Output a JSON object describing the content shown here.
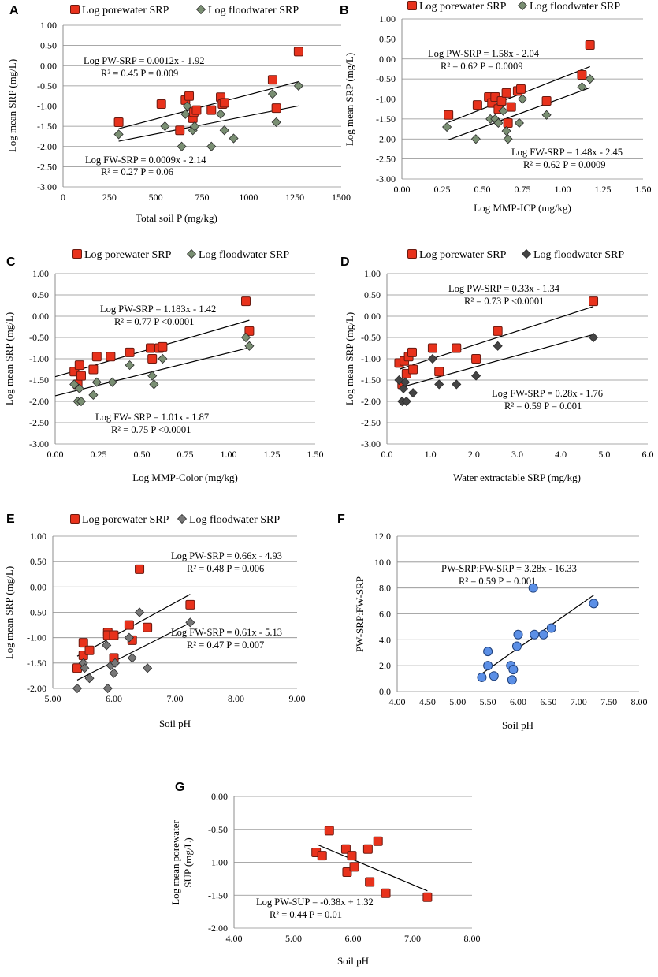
{
  "figure": {
    "panels": [
      {
        "letter": "A",
        "legend": [
          "Log porewater SRP",
          "Log floodwater SRP"
        ]
      },
      {
        "letter": "B",
        "legend": [
          "Log porewater SRP",
          "Log floodwater SRP"
        ]
      },
      {
        "letter": "C",
        "legend": [
          "Log porewater SRP",
          "Log floodwater SRP"
        ]
      },
      {
        "letter": "D",
        "legend": [
          "Log porewater SRP",
          "Log floodwater SRP"
        ]
      },
      {
        "letter": "E",
        "legend": [
          "Log porewater SRP",
          "Log floodwater SRP"
        ]
      },
      {
        "letter": "F",
        "legend": []
      },
      {
        "letter": "G",
        "legend": []
      }
    ]
  },
  "chart_data": [
    {
      "panel": "A",
      "type": "scatter",
      "xlabel": "Total soil P (mg/kg)",
      "ylabel": "Log mean SRP (mg/L)",
      "xlim": [
        0,
        1500
      ],
      "ylim": [
        -3.0,
        1.0
      ],
      "xticks": [
        0,
        250,
        500,
        750,
        1000,
        1250,
        1500
      ],
      "xtick_labels": [
        "0",
        "250",
        "500",
        "750",
        "1000",
        "1250",
        "1500"
      ],
      "yticks": [
        1.0,
        0.5,
        0.0,
        -0.5,
        -1.0,
        -1.5,
        -2.0,
        -2.5,
        -3.0
      ],
      "ytick_labels": [
        "1.00",
        "0.50",
        "0.00",
        "-0.50",
        "-1.00",
        "-1.50",
        "-2.00",
        "-2.50",
        "-3.00"
      ],
      "series": [
        {
          "name": "Log porewater SRP",
          "marker": "square",
          "color": "#e8321c",
          "x": [
            300,
            530,
            630,
            660,
            680,
            700,
            705,
            720,
            800,
            850,
            860,
            870,
            1130,
            1150,
            1270
          ],
          "y": [
            -1.4,
            -0.95,
            -1.6,
            -0.85,
            -0.75,
            -1.3,
            -1.15,
            -1.1,
            -1.1,
            -0.78,
            -0.95,
            -0.92,
            -0.35,
            -1.05,
            0.35
          ],
          "fit": {
            "slope": 0.0012,
            "intercept": -1.92,
            "x_range": [
              300,
              1270
            ]
          }
        },
        {
          "name": "Log floodwater SRP",
          "marker": "diamond",
          "color": "#7a8f73",
          "x": [
            300,
            550,
            640,
            660,
            670,
            700,
            710,
            800,
            850,
            870,
            920,
            1130,
            1150,
            1270
          ],
          "y": [
            -1.7,
            -1.5,
            -2.0,
            -1.2,
            -1.0,
            -1.6,
            -1.5,
            -2.0,
            -1.2,
            -1.6,
            -1.8,
            -0.7,
            -1.4,
            -0.5
          ],
          "fit": {
            "slope": 0.0009,
            "intercept": -2.14,
            "x_range": [
              300,
              1270
            ]
          }
        }
      ],
      "annotations": [
        "Log PW-SRP = 0.0012x - 1.92",
        "R² = 0.45 P = 0.009",
        "Log FW-SRP = 0.0009x - 2.14",
        "R² = 0.27 P = 0.06"
      ]
    },
    {
      "panel": "B",
      "type": "scatter",
      "xlabel": "Log MMP-ICP (mg/kg)",
      "ylabel": "Log mean SRP (mg/L)",
      "xlim": [
        0.0,
        1.5
      ],
      "ylim": [
        -3.0,
        1.0
      ],
      "xticks": [
        0.0,
        0.25,
        0.5,
        0.75,
        1.0,
        1.25,
        1.5
      ],
      "xtick_labels": [
        "0.00",
        "0.25",
        "0.50",
        "0.75",
        "1.00",
        "1.25",
        "1.50"
      ],
      "yticks": [
        1.0,
        0.5,
        0.0,
        -0.5,
        -1.0,
        -1.5,
        -2.0,
        -2.5,
        -3.0
      ],
      "ytick_labels": [
        "1.00",
        "0.50",
        "0.00",
        "-0.50",
        "-1.00",
        "-1.50",
        "-2.00",
        "-2.50",
        "-3.00"
      ],
      "series": [
        {
          "name": "Log porewater SRP",
          "marker": "square",
          "color": "#e8321c",
          "x": [
            0.29,
            0.47,
            0.54,
            0.56,
            0.58,
            0.6,
            0.62,
            0.65,
            0.66,
            0.68,
            0.72,
            0.74,
            0.9,
            1.12,
            1.17
          ],
          "y": [
            -1.4,
            -1.15,
            -0.95,
            -1.1,
            -0.95,
            -1.25,
            -1.05,
            -0.85,
            -1.6,
            -1.2,
            -0.8,
            -0.75,
            -1.05,
            -0.4,
            0.35
          ],
          "fit": {
            "slope": 1.58,
            "intercept": -2.04,
            "x_range": [
              0.29,
              1.17
            ]
          }
        },
        {
          "name": "Log floodwater SRP",
          "marker": "diamond",
          "color": "#7a8f73",
          "x": [
            0.28,
            0.46,
            0.55,
            0.58,
            0.6,
            0.63,
            0.65,
            0.66,
            0.73,
            0.75,
            0.9,
            1.12,
            1.17
          ],
          "y": [
            -1.7,
            -2.0,
            -1.5,
            -1.5,
            -1.6,
            -1.3,
            -1.8,
            -2.0,
            -1.6,
            -1.0,
            -1.4,
            -0.7,
            -0.5
          ],
          "fit": {
            "slope": 1.48,
            "intercept": -2.45,
            "x_range": [
              0.29,
              1.17
            ]
          }
        }
      ],
      "annotations": [
        "Log PW-SRP = 1.58x - 2.04",
        "R² = 0.62 P = 0.0009",
        "Log FW-SRP = 1.48x - 2.45",
        "R² = 0.62 P = 0.0009"
      ]
    },
    {
      "panel": "C",
      "type": "scatter",
      "xlabel": "Log MMP-Color (mg/kg)",
      "ylabel": "Log mean SRP (mg/L)",
      "xlim": [
        0.0,
        1.5
      ],
      "ylim": [
        -3.0,
        1.0
      ],
      "xticks": [
        0.0,
        0.25,
        0.5,
        0.75,
        1.0,
        1.25,
        1.5
      ],
      "xtick_labels": [
        "0.00",
        "0.25",
        "0.50",
        "0.75",
        "1.00",
        "1.25",
        "1.50"
      ],
      "yticks": [
        1.0,
        0.5,
        0.0,
        -0.5,
        -1.0,
        -1.5,
        -2.0,
        -2.5,
        -3.0
      ],
      "ytick_labels": [
        "1.00",
        "0.50",
        "0.00",
        "-0.50",
        "-1.00",
        "-1.50",
        "-2.00",
        "-2.50",
        "-3.00"
      ],
      "series": [
        {
          "name": "Log porewater SRP",
          "marker": "square",
          "color": "#e8321c",
          "x": [
            0.11,
            0.13,
            0.14,
            0.15,
            0.22,
            0.24,
            0.32,
            0.43,
            0.55,
            0.56,
            0.6,
            0.62,
            1.1,
            1.12
          ],
          "y": [
            -1.3,
            -1.6,
            -1.15,
            -1.4,
            -1.25,
            -0.95,
            -0.95,
            -0.85,
            -0.75,
            -1.0,
            -0.75,
            -0.72,
            0.35,
            -0.35
          ],
          "fit": {
            "slope": 1.183,
            "intercept": -1.42,
            "x_range": [
              0.0,
              1.12
            ]
          }
        },
        {
          "name": "Log floodwater SRP",
          "marker": "diamond",
          "color": "#7a8f73",
          "x": [
            0.11,
            0.13,
            0.14,
            0.15,
            0.22,
            0.24,
            0.33,
            0.43,
            0.56,
            0.57,
            0.62,
            1.1,
            1.12
          ],
          "y": [
            -1.6,
            -2.0,
            -1.7,
            -2.0,
            -1.85,
            -1.55,
            -1.55,
            -1.15,
            -1.4,
            -1.6,
            -1.0,
            -0.5,
            -0.7
          ],
          "fit": {
            "slope": 1.01,
            "intercept": -1.87,
            "x_range": [
              0.0,
              1.12
            ]
          }
        }
      ],
      "annotations": [
        "Log PW-SRP = 1.183x - 1.42",
        "R² = 0.77 P <0.0001",
        "Log FW- SRP = 1.01x - 1.87",
        "R² = 0.75 P <0.0001"
      ]
    },
    {
      "panel": "D",
      "type": "scatter",
      "xlabel": "Water extractable SRP (mg/kg)",
      "ylabel": "Log mean SRP (mg/L)",
      "xlim": [
        0.0,
        6.0
      ],
      "ylim": [
        -3.0,
        1.0
      ],
      "xticks": [
        0.0,
        1.0,
        2.0,
        3.0,
        4.0,
        5.0,
        6.0
      ],
      "xtick_labels": [
        "0.0",
        "1.0",
        "2.0",
        "3.0",
        "4.0",
        "5.0",
        "6.0"
      ],
      "yticks": [
        1.0,
        0.5,
        0.0,
        -0.5,
        -1.0,
        -1.5,
        -2.0,
        -2.5,
        -3.0
      ],
      "ytick_labels": [
        "1.00",
        "0.50",
        "0.00",
        "-0.50",
        "-1.00",
        "-1.50",
        "-2.00",
        "-2.50",
        "-3.00"
      ],
      "series": [
        {
          "name": "Log porewater SRP",
          "marker": "square",
          "color": "#e8321c",
          "x": [
            0.28,
            0.35,
            0.4,
            0.45,
            0.5,
            0.58,
            0.6,
            1.05,
            1.2,
            1.6,
            2.05,
            2.55,
            4.75
          ],
          "y": [
            -1.1,
            -1.6,
            -1.05,
            -1.35,
            -0.95,
            -0.85,
            -1.25,
            -0.75,
            -1.3,
            -0.75,
            -1.0,
            -0.35,
            0.35
          ],
          "fit": {
            "slope": 0.33,
            "intercept": -1.34,
            "x_range": [
              0.3,
              4.75
            ]
          }
        },
        {
          "name": "Log floodwater SRP",
          "marker": "diamond",
          "color": "#444444",
          "x": [
            0.28,
            0.35,
            0.38,
            0.42,
            0.45,
            0.6,
            1.05,
            1.2,
            1.6,
            2.05,
            2.55,
            4.75
          ],
          "y": [
            -1.5,
            -2.0,
            -1.7,
            -1.55,
            -2.0,
            -1.8,
            -1.0,
            -1.6,
            -1.6,
            -1.4,
            -0.7,
            -0.5
          ],
          "fit": {
            "slope": 0.28,
            "intercept": -1.76,
            "x_range": [
              0.3,
              4.75
            ]
          }
        }
      ],
      "annotations": [
        "Log PW-SRP = 0.33x - 1.34",
        "R² = 0.73 P <0.0001",
        "Log FW-SRP = 0.28x - 1.76",
        "R² = 0.59 P = 0.001"
      ]
    },
    {
      "panel": "E",
      "type": "scatter",
      "xlabel": "Soil pH",
      "ylabel": "Log mean SRP (mg/L)",
      "xlim": [
        5.0,
        9.0
      ],
      "ylim": [
        -2.0,
        1.0
      ],
      "xticks": [
        5.0,
        6.0,
        7.0,
        8.0,
        9.0
      ],
      "xtick_labels": [
        "5.00",
        "6.00",
        "7.00",
        "8.00",
        "9.00"
      ],
      "yticks": [
        1.0,
        0.5,
        0.0,
        -0.5,
        -1.0,
        -1.5,
        -2.0
      ],
      "ytick_labels": [
        "1.00",
        "0.50",
        "0.00",
        "-0.50",
        "-1.00",
        "-1.50",
        "-2.00"
      ],
      "series": [
        {
          "name": "Log porewater SRP",
          "marker": "square",
          "color": "#e8321c",
          "x": [
            5.4,
            5.5,
            5.5,
            5.6,
            5.9,
            5.9,
            6.0,
            6.0,
            6.25,
            6.3,
            6.42,
            6.55,
            7.25
          ],
          "y": [
            -1.6,
            -1.1,
            -1.35,
            -1.25,
            -0.9,
            -0.95,
            -1.4,
            -0.95,
            -0.75,
            -1.05,
            0.35,
            -0.8,
            -0.35
          ],
          "fit": {
            "slope": 0.66,
            "intercept": -4.93,
            "x_range": [
              5.4,
              7.25
            ]
          }
        },
        {
          "name": "Log floodwater SRP",
          "marker": "diamond",
          "color": "#777777",
          "x": [
            5.4,
            5.5,
            5.52,
            5.6,
            5.88,
            5.9,
            5.95,
            6.0,
            6.02,
            6.25,
            6.3,
            6.42,
            6.55,
            7.25
          ],
          "y": [
            -2.0,
            -1.5,
            -1.6,
            -1.8,
            -1.15,
            -2.0,
            -1.55,
            -1.7,
            -1.5,
            -1.0,
            -1.4,
            -0.5,
            -1.6,
            -0.7
          ],
          "fit": {
            "slope": 0.61,
            "intercept": -5.13,
            "x_range": [
              5.4,
              7.25
            ]
          }
        }
      ],
      "annotations": [
        "Log PW-SRP = 0.66x - 4.93",
        "R² = 0.48 P = 0.006",
        "Log FW-SRP = 0.61x - 5.13",
        "R² = 0.47 P = 0.007"
      ]
    },
    {
      "panel": "F",
      "type": "scatter",
      "xlabel": "Soil pH",
      "ylabel": "PW-SRP:FW-SRP",
      "xlim": [
        4.0,
        8.0
      ],
      "ylim": [
        0.0,
        12.0
      ],
      "xticks": [
        4.0,
        4.5,
        5.0,
        5.5,
        6.0,
        6.5,
        7.0,
        7.5,
        8.0
      ],
      "xtick_labels": [
        "4.00",
        "4.50",
        "5.00",
        "5.50",
        "6.00",
        "6.50",
        "7.00",
        "7.50",
        "8.00"
      ],
      "yticks": [
        12.0,
        10.0,
        8.0,
        6.0,
        4.0,
        2.0,
        0.0
      ],
      "ytick_labels": [
        "12.0",
        "10.0",
        "8.0",
        "6.0",
        "4.0",
        "2.0",
        "0.0"
      ],
      "series": [
        {
          "name": "PW-SRP:FW-SRP",
          "marker": "circle",
          "color": "#5b8fe6",
          "x": [
            5.4,
            5.5,
            5.5,
            5.6,
            5.88,
            5.9,
            5.92,
            5.98,
            6.0,
            6.25,
            6.27,
            6.42,
            6.55,
            7.25
          ],
          "y": [
            1.1,
            3.1,
            2.0,
            1.2,
            2.0,
            0.9,
            1.7,
            3.5,
            4.4,
            8.0,
            4.4,
            4.4,
            4.9,
            6.8
          ],
          "fit": {
            "slope": 3.28,
            "intercept": -16.33,
            "x_range": [
              5.4,
              7.25
            ]
          }
        }
      ],
      "annotations": [
        "PW-SRP:FW-SRP = 3.28x - 16.33",
        "R² = 0.59 P = 0.001"
      ]
    },
    {
      "panel": "G",
      "type": "scatter",
      "xlabel": "Soil pH",
      "ylabel_lines": [
        "Log mean porewater",
        "SUP (mg/L)"
      ],
      "xlim": [
        4.0,
        8.0
      ],
      "ylim": [
        -2.0,
        0.0
      ],
      "xticks": [
        4.0,
        5.0,
        6.0,
        7.0,
        8.0
      ],
      "xtick_labels": [
        "4.00",
        "5.00",
        "6.00",
        "7.00",
        "8.00"
      ],
      "yticks": [
        0.0,
        -0.5,
        -1.0,
        -1.5,
        -2.0
      ],
      "ytick_labels": [
        "0.00",
        "-0.50",
        "-1.00",
        "-1.50",
        "-2.00"
      ],
      "series": [
        {
          "name": "Log porewater SUP",
          "marker": "square",
          "color": "#e8321c",
          "x": [
            5.38,
            5.48,
            5.6,
            5.88,
            5.9,
            5.98,
            6.02,
            6.25,
            6.28,
            6.42,
            6.55,
            7.25
          ],
          "y": [
            -0.85,
            -0.9,
            -0.52,
            -0.8,
            -1.15,
            -0.9,
            -1.07,
            -0.8,
            -1.3,
            -0.68,
            -1.47,
            -1.53
          ],
          "fit": {
            "slope": -0.38,
            "intercept": 1.32,
            "x_range": [
              5.4,
              7.25
            ]
          }
        }
      ],
      "annotations": [
        "Log PW-SUP = -0.38x + 1.32",
        "R² = 0.44 P = 0.01"
      ]
    }
  ]
}
